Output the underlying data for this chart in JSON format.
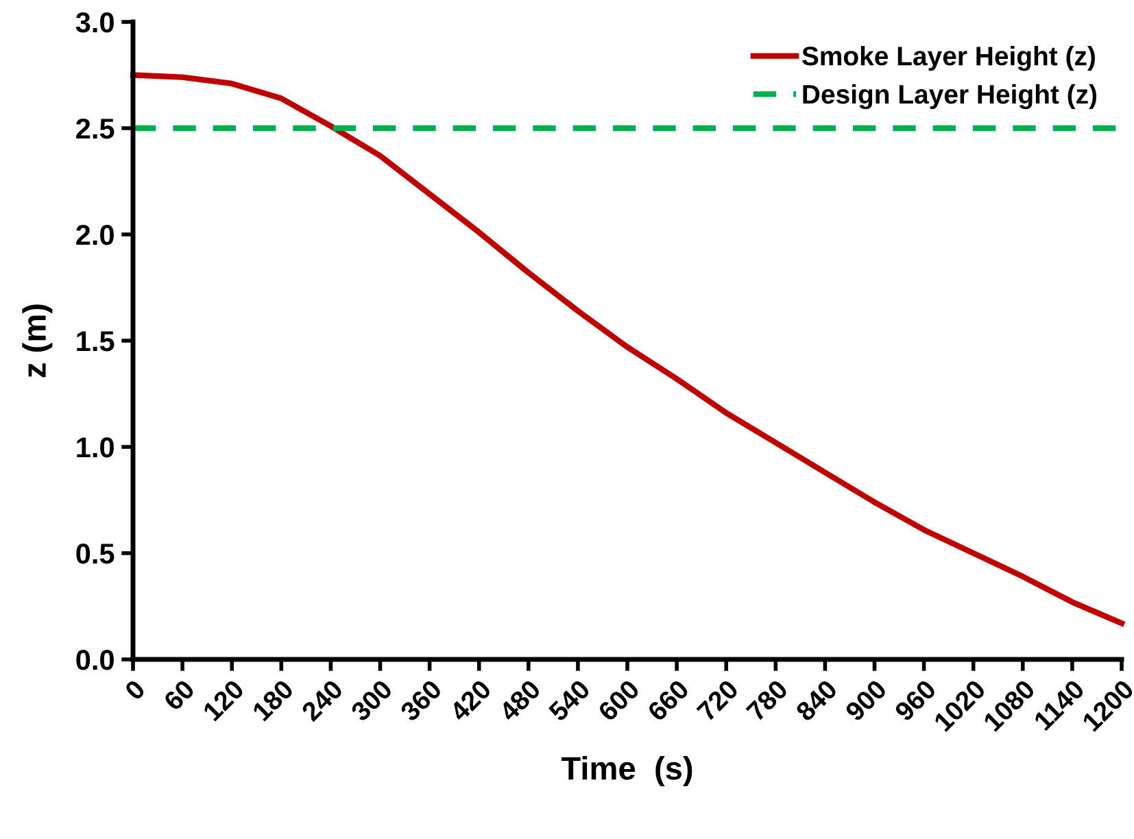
{
  "chart_data": {
    "type": "line",
    "xlabel": "Time  (s)",
    "ylabel": "z (m)",
    "xlim": [
      0,
      1200
    ],
    "xticks": [
      0,
      60,
      120,
      180,
      240,
      300,
      360,
      420,
      480,
      540,
      600,
      660,
      720,
      780,
      840,
      900,
      960,
      1020,
      1080,
      1140,
      1200
    ],
    "ylim": [
      0,
      3
    ],
    "yticks": [
      {
        "value": 0,
        "label": "0.0"
      },
      {
        "value": 0.5,
        "label": "0.5"
      },
      {
        "value": 1,
        "label": "1.0"
      },
      {
        "value": 1.5,
        "label": "1.5"
      },
      {
        "value": 2,
        "label": "2.0"
      },
      {
        "value": 2.5,
        "label": "2.5"
      },
      {
        "value": 3,
        "label": "3.0"
      }
    ],
    "grid": false,
    "legend": "top right",
    "marker": "none",
    "series": [
      {
        "name": "Smoke Layer Height (z)",
        "color": "#c00000",
        "line_style": "solid",
        "x": [
          0,
          60,
          120,
          180,
          240,
          300,
          360,
          420,
          480,
          540,
          600,
          660,
          720,
          780,
          840,
          900,
          960,
          1020,
          1080,
          1140,
          1200
        ],
        "values": [
          2.75,
          2.74,
          2.71,
          2.64,
          2.51,
          2.37,
          2.19,
          2.01,
          1.82,
          1.64,
          1.47,
          1.32,
          1.16,
          1.02,
          0.88,
          0.74,
          0.61,
          0.5,
          0.39,
          0.27,
          0.17
        ]
      },
      {
        "name": "Design Layer Height (z)",
        "color": "#00b050",
        "line_style": "dashed",
        "x": [
          0,
          1200
        ],
        "values": [
          2.5,
          2.5
        ]
      }
    ]
  }
}
